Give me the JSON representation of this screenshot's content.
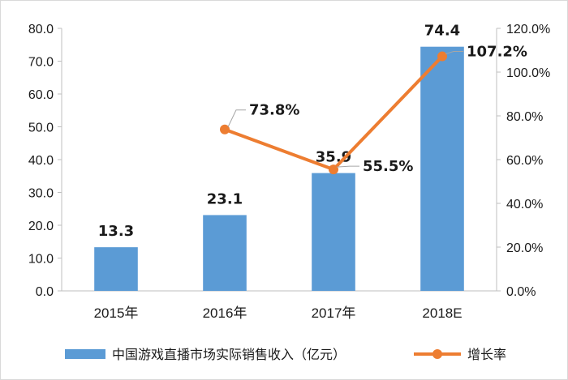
{
  "chart_data": {
    "type": "bar",
    "categories": [
      "2015年",
      "2016年",
      "2017年",
      "2018E"
    ],
    "series": [
      {
        "name": "中国游戏直播市场实际销售收入（亿元）",
        "kind": "bar",
        "axis": "left",
        "values": [
          13.3,
          23.1,
          35.9,
          74.4
        ],
        "labels": [
          "13.3",
          "23.1",
          "35.9",
          "74.4"
        ],
        "color": "#5b9bd5"
      },
      {
        "name": "增长率",
        "kind": "line",
        "axis": "right",
        "values": [
          null,
          73.8,
          55.5,
          107.2
        ],
        "labels": [
          "",
          "73.8%",
          "55.5%",
          "107.2%"
        ],
        "color": "#ed7d31"
      }
    ],
    "y_left": {
      "range": [
        0,
        80
      ],
      "ticks": [
        "0.0",
        "10.0",
        "20.0",
        "30.0",
        "40.0",
        "50.0",
        "60.0",
        "70.0",
        "80.0"
      ]
    },
    "y_right": {
      "range": [
        0,
        120
      ],
      "ticks": [
        "0.0%",
        "20.0%",
        "40.0%",
        "60.0%",
        "80.0%",
        "100.0%",
        "120.0%"
      ]
    },
    "grid": false,
    "legend_position": "bottom"
  }
}
